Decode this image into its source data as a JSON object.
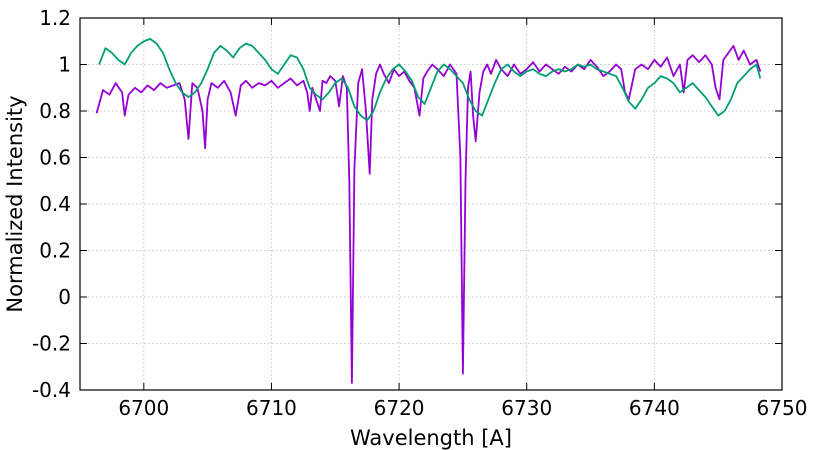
{
  "chart_data": {
    "type": "line",
    "xlabel": "Wavelength [A]",
    "ylabel": "Normalized Intensity",
    "xlim": [
      6695,
      6750
    ],
    "ylim": [
      -0.4,
      1.2
    ],
    "xticks": [
      6700,
      6710,
      6720,
      6730,
      6740,
      6750
    ],
    "yticks": [
      -0.4,
      -0.2,
      0,
      0.2,
      0.4,
      0.6,
      0.8,
      1,
      1.2
    ],
    "grid": true,
    "series": [
      {
        "color": "#9400d3",
        "x": [
          6696.3,
          6696.8,
          6697.3,
          6697.8,
          6698.3,
          6698.5,
          6698.8,
          6699.3,
          6699.8,
          6700.3,
          6700.8,
          6701.3,
          6701.8,
          6702.3,
          6702.8,
          6703.2,
          6703.5,
          6703.8,
          6704.2,
          6704.6,
          6704.8,
          6705.0,
          6705.3,
          6705.8,
          6706.3,
          6706.8,
          6707.2,
          6707.6,
          6708.0,
          6708.5,
          6709.0,
          6709.5,
          6710.0,
          6710.5,
          6711.0,
          6711.5,
          6712.0,
          6712.5,
          6712.8,
          6713.0,
          6713.2,
          6713.5,
          6713.8,
          6714.0,
          6714.3,
          6714.6,
          6715.0,
          6715.3,
          6715.6,
          6715.9,
          6716.1,
          6716.3,
          6716.5,
          6716.8,
          6717.1,
          6717.4,
          6717.7,
          6717.9,
          6718.2,
          6718.5,
          6718.8,
          6719.2,
          6719.6,
          6720.0,
          6720.4,
          6720.8,
          6721.2,
          6721.6,
          6721.9,
          6722.2,
          6722.6,
          6723.0,
          6723.5,
          6724.0,
          6724.5,
          6724.8,
          6725.0,
          6725.2,
          6725.4,
          6725.6,
          6725.8,
          6726.0,
          6726.3,
          6726.6,
          6726.9,
          6727.2,
          6727.6,
          6728.0,
          6728.5,
          6729.0,
          6729.5,
          6730.0,
          6730.5,
          6731.0,
          6731.5,
          6732.0,
          6732.5,
          6733.0,
          6733.5,
          6734.0,
          6734.5,
          6735.0,
          6735.5,
          6736.0,
          6736.5,
          6737.0,
          6737.4,
          6737.7,
          6738.0,
          6738.5,
          6739.0,
          6739.5,
          6740.0,
          6740.5,
          6741.0,
          6741.5,
          6742.0,
          6742.3,
          6742.6,
          6743.0,
          6743.5,
          6744.0,
          6744.5,
          6744.8,
          6745.1,
          6745.4,
          6745.8,
          6746.2,
          6746.6,
          6747.0,
          6747.5,
          6748.0,
          6748.3
        ],
        "y": [
          0.79,
          0.89,
          0.87,
          0.92,
          0.88,
          0.78,
          0.87,
          0.9,
          0.88,
          0.91,
          0.89,
          0.92,
          0.9,
          0.91,
          0.92,
          0.85,
          0.68,
          0.92,
          0.9,
          0.8,
          0.64,
          0.85,
          0.92,
          0.9,
          0.93,
          0.88,
          0.78,
          0.91,
          0.93,
          0.9,
          0.92,
          0.91,
          0.93,
          0.9,
          0.92,
          0.94,
          0.91,
          0.93,
          0.88,
          0.8,
          0.9,
          0.85,
          0.8,
          0.93,
          0.92,
          0.95,
          0.93,
          0.82,
          0.95,
          0.9,
          0.5,
          -0.37,
          0.55,
          0.92,
          0.98,
          0.8,
          0.53,
          0.85,
          0.96,
          1.0,
          0.96,
          0.92,
          0.98,
          0.95,
          0.97,
          0.93,
          0.9,
          0.78,
          0.94,
          0.97,
          1.0,
          0.98,
          0.95,
          1.0,
          0.96,
          0.6,
          -0.33,
          0.5,
          0.9,
          0.97,
          0.78,
          0.67,
          0.88,
          0.97,
          1.0,
          0.96,
          1.02,
          0.98,
          0.95,
          1.0,
          0.96,
          0.98,
          1.01,
          0.97,
          1.0,
          0.98,
          0.96,
          0.99,
          0.97,
          1.0,
          0.98,
          1.02,
          0.99,
          0.95,
          0.97,
          1.0,
          0.98,
          0.88,
          0.85,
          0.98,
          1.0,
          0.98,
          1.02,
          0.99,
          1.03,
          0.95,
          1.0,
          0.88,
          1.02,
          1.04,
          1.01,
          1.04,
          1.0,
          0.9,
          0.85,
          1.02,
          1.05,
          1.08,
          1.02,
          1.06,
          1.0,
          1.02,
          0.97
        ]
      },
      {
        "color": "#009e73",
        "x": [
          6696.5,
          6697.0,
          6697.5,
          6698.0,
          6698.5,
          6699.0,
          6699.5,
          6700.0,
          6700.5,
          6701.0,
          6701.5,
          6702.0,
          6702.5,
          6703.0,
          6703.5,
          6704.0,
          6704.5,
          6705.0,
          6705.5,
          6706.0,
          6706.5,
          6707.0,
          6707.5,
          6708.0,
          6708.5,
          6709.0,
          6709.5,
          6710.0,
          6710.5,
          6711.0,
          6711.5,
          6712.0,
          6712.5,
          6713.0,
          6713.5,
          6714.0,
          6714.5,
          6715.0,
          6715.5,
          6716.0,
          6716.5,
          6717.0,
          6717.5,
          6718.0,
          6718.5,
          6719.0,
          6719.5,
          6720.0,
          6720.5,
          6721.0,
          6721.5,
          6722.0,
          6722.5,
          6723.0,
          6723.5,
          6724.0,
          6724.5,
          6725.0,
          6725.5,
          6726.0,
          6726.5,
          6727.0,
          6727.5,
          6728.0,
          6728.5,
          6729.0,
          6729.5,
          6730.0,
          6730.5,
          6731.0,
          6731.5,
          6732.0,
          6732.5,
          6733.0,
          6733.5,
          6734.0,
          6734.5,
          6735.0,
          6735.5,
          6736.0,
          6736.5,
          6737.0,
          6737.5,
          6738.0,
          6738.5,
          6739.0,
          6739.5,
          6740.0,
          6740.5,
          6741.0,
          6741.5,
          6742.0,
          6742.5,
          6743.0,
          6743.5,
          6744.0,
          6744.5,
          6745.0,
          6745.5,
          6746.0,
          6746.5,
          6747.0,
          6747.5,
          6748.0,
          6748.3
        ],
        "y": [
          1.0,
          1.07,
          1.05,
          1.02,
          1.0,
          1.05,
          1.08,
          1.1,
          1.11,
          1.09,
          1.05,
          0.98,
          0.92,
          0.88,
          0.86,
          0.88,
          0.92,
          0.98,
          1.05,
          1.08,
          1.06,
          1.03,
          1.07,
          1.09,
          1.08,
          1.05,
          1.02,
          0.98,
          0.96,
          1.0,
          1.04,
          1.03,
          0.98,
          0.9,
          0.87,
          0.85,
          0.88,
          0.92,
          0.94,
          0.9,
          0.82,
          0.78,
          0.76,
          0.8,
          0.88,
          0.94,
          0.98,
          1.0,
          0.97,
          0.93,
          0.86,
          0.83,
          0.9,
          0.97,
          1.0,
          0.98,
          0.95,
          0.92,
          0.85,
          0.8,
          0.78,
          0.85,
          0.92,
          0.98,
          1.0,
          0.97,
          0.95,
          0.97,
          0.98,
          0.96,
          0.95,
          0.97,
          0.98,
          0.97,
          0.98,
          1.0,
          0.99,
          1.0,
          0.98,
          0.97,
          0.96,
          0.95,
          0.9,
          0.84,
          0.81,
          0.85,
          0.9,
          0.92,
          0.95,
          0.94,
          0.92,
          0.88,
          0.9,
          0.92,
          0.89,
          0.86,
          0.82,
          0.78,
          0.8,
          0.85,
          0.92,
          0.95,
          0.98,
          1.0,
          0.94
        ]
      }
    ]
  }
}
